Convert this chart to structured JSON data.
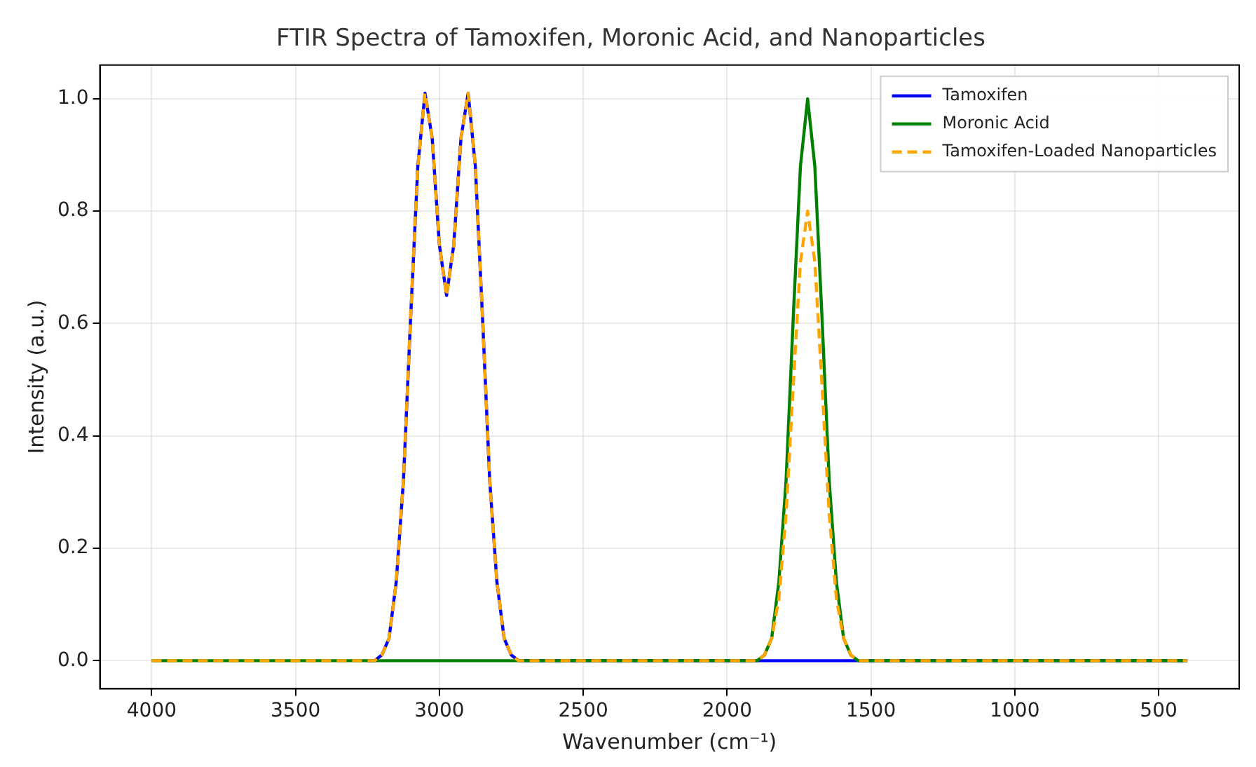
{
  "chart_data": {
    "type": "line",
    "title": "FTIR Spectra of Tamoxifen, Moronic Acid, and Nanoparticles",
    "xlabel": "Wavenumber (cm⁻¹)",
    "ylabel": "Intensity (a.u.)",
    "xlim": [
      4180,
      220
    ],
    "xticks": [
      4000,
      3500,
      3000,
      2500,
      2000,
      1500,
      1000,
      500
    ],
    "ylim": [
      -0.05,
      1.06
    ],
    "yticks": [
      {
        "value": 0,
        "label": "0.0"
      },
      {
        "value": 0.2,
        "label": "0.2"
      },
      {
        "value": 0.4,
        "label": "0.4"
      },
      {
        "value": 0.6,
        "label": "0.6"
      },
      {
        "value": 0.8,
        "label": "0.8"
      },
      {
        "value": 1,
        "label": "1.0"
      }
    ],
    "grid": true,
    "legend": "top right",
    "marker": "none",
    "series": [
      {
        "name": "Tamoxifen",
        "color": "#0000ff",
        "line_style": "solid",
        "x": [
          3250,
          3225,
          3200,
          3175,
          3150,
          3125,
          3100,
          3075,
          3050,
          3025,
          3000,
          2975,
          2950,
          2925,
          2900,
          2875,
          2850,
          2825,
          2800,
          2775,
          2750,
          2725,
          2700,
          400
        ],
        "values": [
          0,
          0,
          0.01,
          0.04,
          0.14,
          0.32,
          0.61,
          0.88,
          1.01,
          0.93,
          0.74,
          0.65,
          0.74,
          0.93,
          1.01,
          0.88,
          0.61,
          0.32,
          0.14,
          0.04,
          0.01,
          0,
          0,
          0
        ]
      },
      {
        "name": "Moronic Acid",
        "color": "#008000",
        "line_style": "solid",
        "x": [
          4000,
          1920,
          1895,
          1870,
          1845,
          1820,
          1795,
          1770,
          1745,
          1720,
          1695,
          1670,
          1645,
          1620,
          1595,
          1570,
          1545,
          1520,
          400
        ],
        "values": [
          0,
          0,
          0,
          0.01,
          0.04,
          0.14,
          0.32,
          0.61,
          0.88,
          1,
          0.88,
          0.61,
          0.32,
          0.14,
          0.04,
          0.01,
          0,
          0,
          0
        ]
      },
      {
        "name": "Tamoxifen-Loaded Nanoparticles",
        "color": "#ffa500",
        "line_style": "dashed",
        "x": [
          4000,
          3300,
          3275,
          3250,
          3225,
          3200,
          3175,
          3150,
          3125,
          3100,
          3075,
          3050,
          3025,
          3000,
          2975,
          2950,
          2925,
          2900,
          2875,
          2850,
          2825,
          2800,
          2775,
          2750,
          2725,
          2700,
          1920,
          1895,
          1870,
          1845,
          1820,
          1795,
          1770,
          1745,
          1720,
          1695,
          1670,
          1645,
          1620,
          1595,
          1570,
          1545,
          1520,
          400
        ],
        "values": [
          0,
          0,
          0,
          0,
          0,
          0.01,
          0.04,
          0.14,
          0.32,
          0.61,
          0.88,
          1.01,
          0.93,
          0.74,
          0.65,
          0.74,
          0.93,
          1.01,
          0.88,
          0.61,
          0.32,
          0.14,
          0.04,
          0.01,
          0,
          0,
          0,
          0,
          0.01,
          0.04,
          0.11,
          0.26,
          0.49,
          0.71,
          0.8,
          0.71,
          0.49,
          0.26,
          0.11,
          0.04,
          0.01,
          0,
          0,
          0
        ]
      }
    ]
  }
}
